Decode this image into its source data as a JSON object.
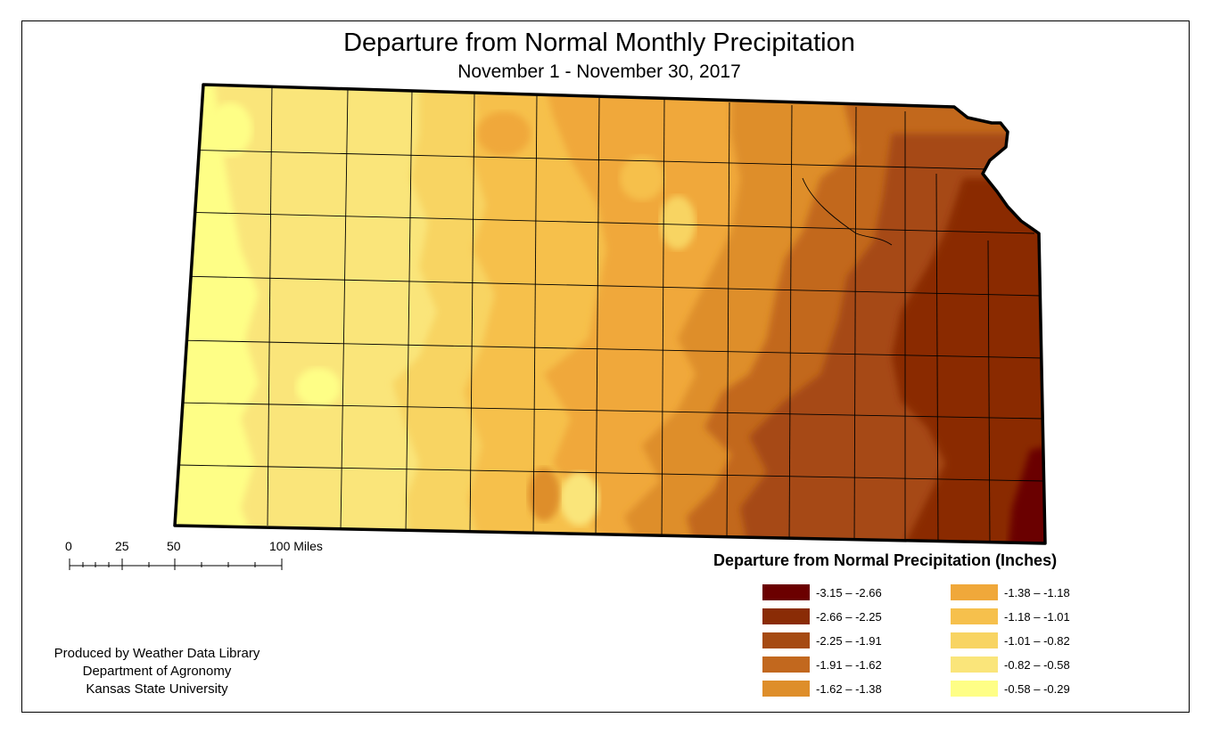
{
  "title": "Departure from Normal Monthly Precipitation",
  "subtitle": "November 1 - November 30, 2017",
  "scale": {
    "labels": [
      "0",
      "25",
      "50",
      "100 Miles"
    ]
  },
  "legend": {
    "title": "Departure from Normal Precipitation (Inches)",
    "items": [
      {
        "label": "-3.15 – -2.66",
        "color": "#6b0000"
      },
      {
        "label": "-2.66 – -2.25",
        "color": "#8a2c06"
      },
      {
        "label": "-2.25 – -1.91",
        "color": "#a64a12"
      },
      {
        "label": "-1.91 – -1.62",
        "color": "#c2681e"
      },
      {
        "label": "-1.62 – -1.38",
        "color": "#de8e2a"
      },
      {
        "label": "-1.38 – -1.18",
        "color": "#f0a83a"
      },
      {
        "label": "-1.18 – -1.01",
        "color": "#f6c04c"
      },
      {
        "label": "-1.01 – -0.82",
        "color": "#f8d462"
      },
      {
        "label": "-0.82 – -0.58",
        "color": "#fae57a"
      },
      {
        "label": "-0.58 – -0.29",
        "color": "#fefe86"
      }
    ]
  },
  "credits": {
    "line1": "Produced by Weather Data Library",
    "line2": "Department of Agronomy",
    "line3": "Kansas State University"
  }
}
